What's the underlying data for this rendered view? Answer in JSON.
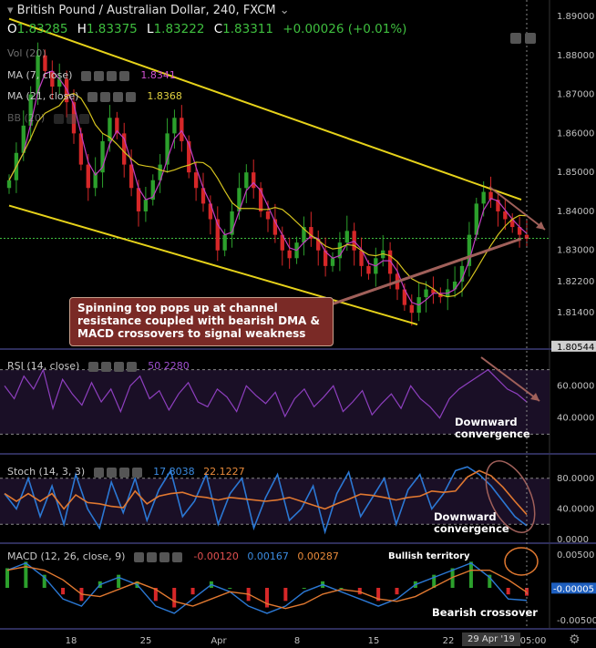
{
  "header": {
    "symbol": "British Pound / Australian Dollar, 240, FXCM",
    "dropdown_glyph": "⌄",
    "ohlc": {
      "o_label": "O",
      "o_value": "1.83285",
      "h_label": "H",
      "h_value": "1.83375",
      "l_label": "L",
      "l_value": "1.83222",
      "c_label": "C",
      "c_value": "1.83311",
      "change": "+0.00026 (+0.01%)"
    }
  },
  "indicators": {
    "vol": "Vol (20)",
    "ma7_label": "MA (7, close)",
    "ma7_value": "1.8341",
    "ma21_label": "MA (21, close)",
    "ma21_value": "1.8368",
    "bb_label": "BB (20)",
    "rsi_label": "RSI (14, close)",
    "rsi_value": "50.2280",
    "stoch_label": "Stoch (14, 3, 3)",
    "stoch_k": "17.8038",
    "stoch_d": "22.1227",
    "macd_label": "MACD (12, 26, close, 9)",
    "macd_hist": "-0.00120",
    "macd_line": "0.00167",
    "macd_signal": "0.00287"
  },
  "annotations": {
    "main_box": "Spinning top pops up at channel resistance coupled with bearish DMA & MACD crossovers to signal weakness",
    "rsi_note": "Downward convergence",
    "stoch_note": "Downward convergence",
    "macd_bullish": "Bullish territory",
    "macd_bearish": "Bearish crossover"
  },
  "price_axis": [
    "1.89000",
    "1.88000",
    "1.87000",
    "1.86000",
    "1.85000",
    "1.84000",
    "1.83000",
    "1.82200",
    "1.81400",
    "1.80544"
  ],
  "rsi_axis": [
    "60.0000",
    "40.0000"
  ],
  "stoch_axis": [
    "80.0000",
    "40.0000",
    "0.0000"
  ],
  "macd_axis": [
    "0.00500",
    "-0.00005",
    "-0.00500"
  ],
  "time_axis": [
    "18",
    "25",
    "Apr",
    "8",
    "15",
    "22",
    "05:00"
  ],
  "time_badge": "29 Apr '19",
  "colors": {
    "bull": "#2ca02c",
    "bear": "#d62728",
    "channel": "#e6d21a",
    "ma_fast": "#c23ec2",
    "ma_slow": "#d4c21e",
    "trend": "#a0605a",
    "rsi": "#8e3fbf",
    "stoch_k": "#2b78d4",
    "stoch_d": "#e07830",
    "macd": "#2b78d4",
    "signal": "#e07830"
  },
  "chart_data": {
    "type": "line",
    "title": "British Pound / Australian Dollar, 240, FXCM",
    "ylim": [
      1.8054,
      1.89
    ],
    "channel": {
      "upper": [
        {
          "x": 0,
          "y": 1.8894
        },
        {
          "x": 1,
          "y": 1.843
        }
      ],
      "lower": [
        {
          "x": 0,
          "y": 1.8415
        },
        {
          "x": 1,
          "y": 1.811
        }
      ]
    },
    "price_close_sample": [
      1.848,
      1.855,
      1.862,
      1.87,
      1.88,
      1.876,
      1.872,
      1.874,
      1.868,
      1.86,
      1.852,
      1.846,
      1.85,
      1.858,
      1.864,
      1.86,
      1.852,
      1.846,
      1.84,
      1.843,
      1.848,
      1.852,
      1.86,
      1.864,
      1.858,
      1.85,
      1.846,
      1.842,
      1.838,
      1.83,
      1.834,
      1.84,
      1.846,
      1.85,
      1.846,
      1.84,
      1.838,
      1.834,
      1.83,
      1.828,
      1.832,
      1.836,
      1.833,
      1.83,
      1.826,
      1.828,
      1.832,
      1.835,
      1.83,
      1.826,
      1.824,
      1.828,
      1.83,
      1.824,
      1.82,
      1.816,
      1.814,
      1.818,
      1.82,
      1.819,
      1.818,
      1.82,
      1.822,
      1.826,
      1.834,
      1.842,
      1.845,
      1.843,
      1.84,
      1.838,
      1.836,
      1.834,
      1.833
    ],
    "rsi_sample": [
      60,
      52,
      66,
      58,
      70,
      46,
      64,
      55,
      48,
      62,
      50,
      58,
      44,
      60,
      66,
      52,
      57,
      45,
      55,
      62,
      50,
      47,
      58,
      53,
      44,
      60,
      54,
      49,
      56,
      41,
      52,
      58,
      47,
      53,
      60,
      44,
      50,
      57,
      42,
      49,
      55,
      46,
      60,
      52,
      47,
      40,
      52,
      58,
      62,
      66,
      70,
      64,
      58,
      55,
      50
    ],
    "stoch_k_sample": [
      60,
      40,
      80,
      30,
      70,
      20,
      85,
      40,
      15,
      75,
      35,
      80,
      25,
      65,
      90,
      30,
      50,
      85,
      20,
      60,
      80,
      15,
      55,
      85,
      25,
      40,
      70,
      10,
      60,
      88,
      30,
      55,
      80,
      20,
      65,
      85,
      40,
      60,
      90,
      95,
      85,
      70,
      50,
      30,
      18
    ],
    "macd_hist_sample": [
      0.003,
      0.004,
      0.002,
      -0.001,
      -0.002,
      0.001,
      0.002,
      0.001,
      -0.002,
      -0.003,
      -0.001,
      0.001,
      0.0,
      -0.002,
      -0.003,
      -0.002,
      0.0,
      0.001,
      0.0,
      -0.001,
      -0.002,
      -0.001,
      0.001,
      0.002,
      0.003,
      0.004,
      0.002,
      -0.001,
      -0.0012
    ]
  }
}
